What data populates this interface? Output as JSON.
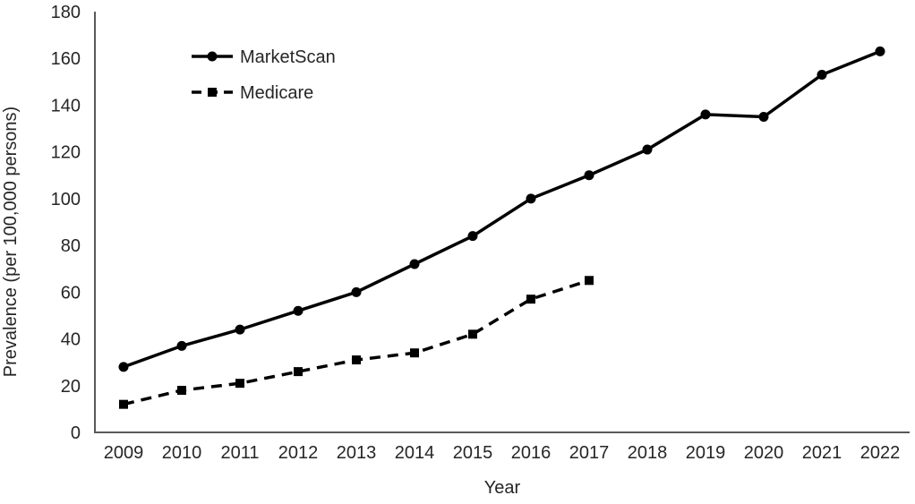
{
  "chart_data": {
    "type": "line",
    "title": "",
    "xlabel": "Year",
    "ylabel": "Prevalence (per 100,000 persons)",
    "x": [
      2009,
      2010,
      2011,
      2012,
      2013,
      2014,
      2015,
      2016,
      2017,
      2018,
      2019,
      2020,
      2021,
      2022
    ],
    "series": [
      {
        "name": "MarketScan",
        "marker": "circle",
        "line_style": "solid",
        "color": "#000000",
        "values": [
          28,
          37,
          44,
          52,
          60,
          72,
          84,
          100,
          110,
          121,
          136,
          135,
          153,
          163
        ]
      },
      {
        "name": "Medicare",
        "marker": "square",
        "line_style": "dashed",
        "color": "#000000",
        "values": [
          12,
          18,
          21,
          26,
          31,
          34,
          42,
          57,
          65,
          null,
          null,
          null,
          null,
          null
        ]
      }
    ],
    "ylim": [
      0,
      180
    ],
    "ytick_step": 20,
    "grid": false,
    "legend_position": "top-left-inside",
    "axis_color": "#595959",
    "text_color": "#262626"
  }
}
